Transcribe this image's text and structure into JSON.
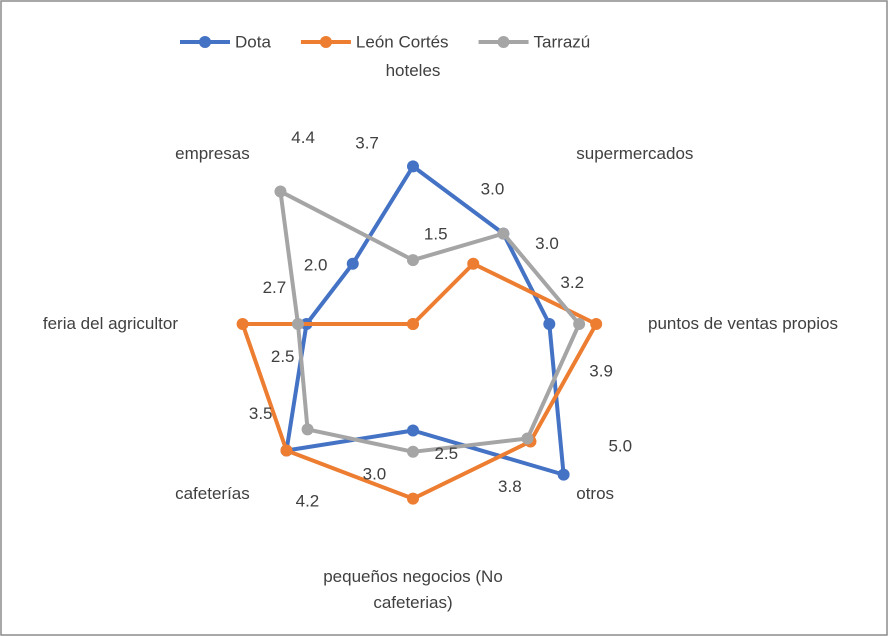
{
  "chart_data": {
    "type": "radar",
    "categories": [
      "hoteles",
      "supermercados",
      "puntos de ventas propios",
      "otros",
      "pequeños negocios (No cafeterias)",
      "cafeterías",
      "feria del agricultor",
      "empresas"
    ],
    "rlim": [
      0,
      5
    ],
    "legend": "top",
    "series": [
      {
        "name": "Dota",
        "color": "#4472c4",
        "values": [
          3.7,
          3.0,
          3.2,
          5.0,
          2.5,
          4.2,
          2.5,
          2.0
        ],
        "value_labels": [
          "3.7",
          "3.0",
          "3.2",
          "5.0",
          "2.5",
          "4.2",
          "2.5",
          "2.0"
        ]
      },
      {
        "name": "León Cortés",
        "color": "#ed7d31",
        "values": [
          0,
          2.0,
          4.3,
          3.9,
          4.1,
          4.2,
          4.0,
          0
        ]
      },
      {
        "name": "Tarrazú",
        "color": "#a5a5a5",
        "values": [
          1.5,
          3.0,
          3.9,
          3.8,
          3.0,
          3.5,
          2.7,
          4.4
        ],
        "value_labels": [
          "1.5",
          "3.0",
          "3.9",
          "3.8",
          "3.0",
          "3.5",
          "2.7",
          "4.4"
        ]
      }
    ]
  }
}
